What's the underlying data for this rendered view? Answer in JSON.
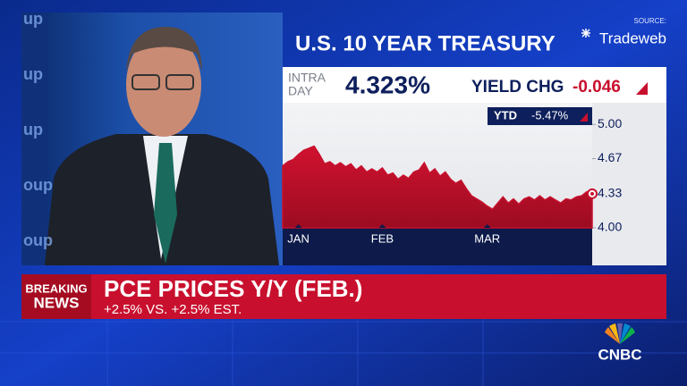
{
  "chart_data": {
    "type": "area",
    "title": "U.S. 10 YEAR TREASURY",
    "source_label": "SOURCE:",
    "source": "Tradeweb",
    "intraday_label": [
      "INTRA",
      "DAY"
    ],
    "intraday_value": "4.323%",
    "yield_chg_label": "YIELD CHG",
    "yield_chg": "-0.046",
    "ytd_label": "YTD",
    "ytd": "-5.47%",
    "categories": [
      null,
      null,
      null,
      "JAN",
      null,
      null,
      null,
      null,
      null,
      null,
      null,
      null,
      null,
      null,
      null,
      null,
      null,
      null,
      null,
      "FEB",
      null,
      null,
      null,
      null,
      null,
      null,
      null,
      null,
      null,
      null,
      null,
      null,
      null,
      null,
      null,
      null,
      null,
      null,
      null,
      "MAR",
      null,
      null,
      null,
      null,
      null,
      null,
      null,
      null,
      null,
      null,
      null,
      null,
      null,
      null,
      null,
      null,
      null,
      null,
      null,
      null
    ],
    "values": [
      4.6,
      4.64,
      4.66,
      4.71,
      4.75,
      4.77,
      4.79,
      4.71,
      4.62,
      4.64,
      4.6,
      4.63,
      4.59,
      4.62,
      4.56,
      4.6,
      4.54,
      4.57,
      4.54,
      4.58,
      4.51,
      4.53,
      4.47,
      4.51,
      4.48,
      4.54,
      4.56,
      4.63,
      4.53,
      4.57,
      4.5,
      4.54,
      4.47,
      4.43,
      4.46,
      4.38,
      4.31,
      4.28,
      4.25,
      4.21,
      4.18,
      4.24,
      4.3,
      4.24,
      4.28,
      4.23,
      4.28,
      4.3,
      4.27,
      4.31,
      4.27,
      4.3,
      4.27,
      4.24,
      4.28,
      4.27,
      4.3,
      4.31,
      4.35,
      4.33
    ],
    "color": "#c8102e",
    "ylim": [
      4.0,
      5.21
    ],
    "yticks": [
      {
        "value": 5,
        "label": "5.00"
      },
      {
        "value": 4.67,
        "label": "4.67"
      },
      {
        "value": 4.33,
        "label": "4.33"
      },
      {
        "value": 4,
        "label": "4.00"
      }
    ]
  },
  "banner": {
    "tag": [
      "BREAKING",
      "NEWS"
    ],
    "headline": "PCE PRICES Y/Y (FEB.)",
    "subline": "+2.5% VS. +2.5% EST.",
    "network": "CNBC"
  },
  "wall_text": [
    "up",
    "up",
    "up",
    "oup",
    "oup"
  ]
}
